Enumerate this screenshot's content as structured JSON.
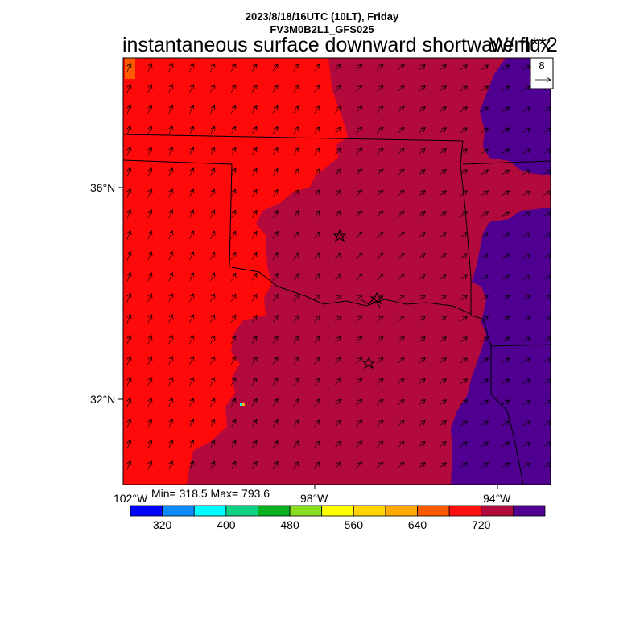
{
  "header": {
    "line1": "2023/8/18/16UTC (10LT), Friday",
    "line2": "FV3M0B2L1_GFS025",
    "title": "instantaneous surface downward shortwave flux",
    "units": "W/m**2"
  },
  "axes": {
    "lat_labels": [
      "36°N",
      "32°N"
    ],
    "lon_labels": [
      "102°W",
      "98°W",
      "94°W"
    ]
  },
  "stats": {
    "text": "Min= 318.5 Max= 793.6"
  },
  "vector_legend": {
    "value": "8"
  },
  "colorbar": {
    "labels": [
      "320",
      "400",
      "480",
      "560",
      "640",
      "720"
    ],
    "colors": [
      "#0000ff",
      "#0a8cff",
      "#00ffff",
      "#0ed184",
      "#06b01e",
      "#8ade20",
      "#ffff00",
      "#ffd400",
      "#ffaa00",
      "#ff5a00",
      "#ff0f10",
      "#b20a3c",
      "#500090"
    ]
  },
  "map_colors": {
    "red": "#ff0a0a",
    "crimson": "#b20a3c",
    "purple": "#500090"
  }
}
